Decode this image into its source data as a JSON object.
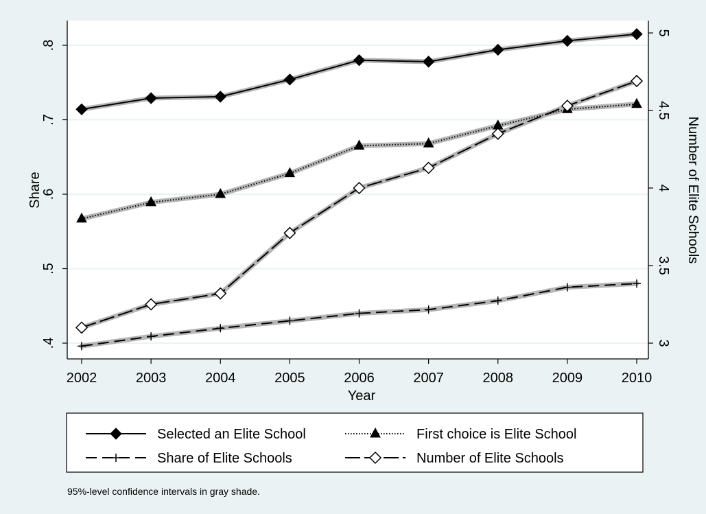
{
  "chart_data": {
    "type": "line",
    "title": "",
    "xlabel": "Year",
    "ylabel": "Share",
    "y2label": "Number of Elite Schools",
    "x": [
      2002,
      2003,
      2004,
      2005,
      2006,
      2007,
      2008,
      2009,
      2010
    ],
    "x_ticks": [
      "2002",
      "2003",
      "2004",
      "2005",
      "2006",
      "2007",
      "2008",
      "2009",
      "2010"
    ],
    "ylim": [
      0.4,
      0.82
    ],
    "y_ticks": [
      0.4,
      0.5,
      0.6,
      0.7,
      0.8
    ],
    "y_tick_labels": [
      ".4",
      ".5",
      ".6",
      ".7",
      ".8"
    ],
    "y2lim": [
      3,
      5
    ],
    "y2_ticks": [
      3,
      3.5,
      4,
      4.5,
      5
    ],
    "y2_tick_labels": [
      "3",
      "3.5",
      "4",
      "4.5",
      "5"
    ],
    "grid": true,
    "legend_position": "bottom",
    "series": [
      {
        "name": "Selected an Elite School",
        "axis": "left",
        "marker": "filled-diamond",
        "line": "solid",
        "values": [
          0.714,
          0.729,
          0.731,
          0.754,
          0.78,
          0.778,
          0.794,
          0.806,
          0.815
        ]
      },
      {
        "name": "First choice is Elite School",
        "axis": "left",
        "marker": "filled-triangle",
        "line": "dotted",
        "values": [
          0.567,
          0.589,
          0.6,
          0.628,
          0.665,
          0.668,
          0.692,
          0.714,
          0.721
        ]
      },
      {
        "name": "Share of Elite Schools",
        "axis": "left",
        "marker": "plus",
        "line": "dashed",
        "values": [
          0.396,
          0.409,
          0.42,
          0.43,
          0.44,
          0.445,
          0.457,
          0.475,
          0.48
        ]
      },
      {
        "name": "Number of Elite Schools",
        "axis": "right",
        "marker": "hollow-diamond",
        "line": "longdash",
        "values": [
          3.1,
          3.25,
          3.32,
          3.71,
          4.0,
          4.13,
          4.35,
          4.53,
          4.69
        ]
      }
    ],
    "note": "95%-level confidence intervals in gray shade.",
    "colors": {
      "outer_bg": "#eaf2f3",
      "plot_bg": "#ffffff",
      "grid": "#eaf2f3",
      "ci": "#b5b5b5",
      "line": "#000000"
    }
  }
}
